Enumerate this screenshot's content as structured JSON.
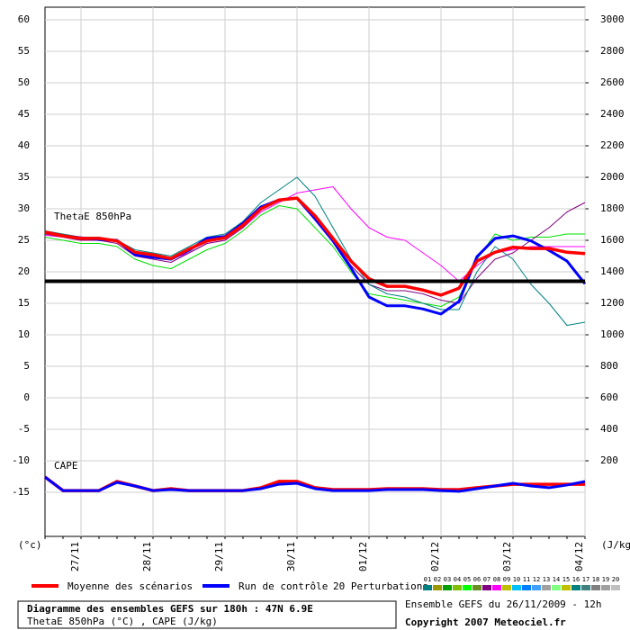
{
  "chart_data": {
    "type": "line",
    "title": "Diagramme des ensembles GEFS sur 180h : 47N 6.9E",
    "subtitle": "ThetaE 850hPa (°C) , CAPE (J/kg)",
    "run_label": "Ensemble GEFS du 26/11/2009 - 12h",
    "copyright": "Copyright 2007 Meteociel.fr",
    "panel_labels": [
      "ThetaE 850hPa",
      "CAPE"
    ],
    "ylabel": "(°c)",
    "y2label": "(J/kg)",
    "categories": [
      null,
      null,
      "27/11",
      null,
      null,
      null,
      "28/11",
      null,
      null,
      null,
      "29/11",
      null,
      null,
      null,
      "30/11",
      null,
      null,
      null,
      "01/12",
      null,
      null,
      null,
      "02/12",
      null,
      null,
      null,
      "03/12",
      null,
      null,
      null,
      "04/12"
    ],
    "ylim": [
      -22,
      62
    ],
    "yticks": [
      60,
      55,
      50,
      45,
      40,
      35,
      30,
      25,
      20,
      15,
      10,
      5,
      0,
      -5,
      -10,
      -15
    ],
    "y2lim": [
      -280,
      3080
    ],
    "y2ticks": [
      3000,
      2800,
      2600,
      2400,
      2200,
      2000,
      1800,
      1600,
      1400,
      1200,
      1000,
      800,
      600,
      400,
      200
    ],
    "grid": true,
    "reference_line": 18.5,
    "series": [
      {
        "name": "Moyenne des scénarios",
        "color": "#ff0000",
        "values": [
          26.3,
          25.7,
          25.3,
          25.3,
          24.9,
          23.1,
          22.7,
          22.1,
          23.6,
          24.9,
          25.4,
          27.4,
          30,
          31.4,
          31.7,
          28.9,
          25.3,
          21.7,
          18.9,
          17.7,
          17.7,
          17.1,
          16.3,
          17.4,
          21.7,
          23.1,
          23.9,
          23.7,
          23.7,
          23.1,
          22.9
        ]
      },
      {
        "name": "Run de contrôle",
        "color": "#0000ff",
        "values": [
          26.3,
          25.7,
          25.4,
          25.1,
          25,
          22.7,
          22.3,
          22,
          23.4,
          25.3,
          25.6,
          27.7,
          30.3,
          31.4,
          31.7,
          28.4,
          24.9,
          20.6,
          16,
          14.6,
          14.6,
          14.1,
          13.3,
          15.3,
          22.4,
          25.3,
          25.7,
          24.9,
          23.4,
          21.7,
          18.1
        ]
      },
      {
        "color": "#ff00ff",
        "values": [
          25.8,
          25.5,
          25,
          25,
          24.8,
          23,
          22.5,
          22,
          23,
          24.5,
          25,
          27,
          29.5,
          31,
          32.5,
          33,
          33.5,
          30,
          27,
          25.5,
          25,
          23,
          21,
          18.5,
          21,
          23,
          23.5,
          24,
          24,
          24,
          24
        ]
      },
      {
        "color": "#00e000",
        "values": [
          25.5,
          25,
          24.5,
          24.5,
          24,
          22,
          21,
          20.5,
          22,
          23.5,
          24.5,
          26.5,
          29,
          30.5,
          30,
          27,
          24,
          20,
          16.5,
          16,
          15.5,
          15,
          14.5,
          16,
          22,
          26,
          25,
          25.5,
          25.5,
          26,
          26
        ]
      },
      {
        "color": "#800080",
        "values": [
          26,
          25.5,
          25,
          25,
          24.5,
          22.5,
          22,
          21.5,
          23,
          24.5,
          25,
          27,
          30,
          31.5,
          31.5,
          29,
          25,
          21,
          18,
          17,
          17,
          16.5,
          15.5,
          15,
          19,
          22,
          23,
          25,
          27,
          29.5,
          31
        ]
      },
      {
        "color": "#008080",
        "values": [
          26.5,
          26,
          25.5,
          25.5,
          25,
          23.5,
          23,
          22.5,
          24,
          25.5,
          26,
          28,
          31,
          33,
          35,
          32,
          27,
          22,
          18,
          16.5,
          16,
          15,
          14,
          14,
          20,
          24,
          22,
          18,
          15,
          11.5,
          12
        ]
      },
      {
        "color": "#ff0000",
        "axis": "y2",
        "values": [
          97,
          11,
          11,
          11,
          69,
          40,
          11,
          23,
          11,
          11,
          11,
          11,
          29,
          69,
          69,
          29,
          17,
          17,
          17,
          23,
          23,
          23,
          17,
          17,
          29,
          40,
          51,
          51,
          51,
          51,
          51
        ]
      },
      {
        "color": "#0000ff",
        "axis": "y2",
        "values": [
          97,
          11,
          11,
          11,
          63,
          40,
          11,
          17,
          11,
          11,
          11,
          11,
          23,
          51,
          57,
          23,
          11,
          11,
          11,
          17,
          17,
          17,
          11,
          6,
          23,
          40,
          57,
          40,
          29,
          46,
          69
        ]
      }
    ],
    "perturbations_legend": {
      "label": "20 Perturbations",
      "members": [
        {
          "label": "01",
          "color": "#008080"
        },
        {
          "label": "02",
          "color": "#9a9a00"
        },
        {
          "label": "03",
          "color": "#00a000"
        },
        {
          "label": "04",
          "color": "#80c000"
        },
        {
          "label": "05",
          "color": "#00ff00"
        },
        {
          "label": "06",
          "color": "#6b8e23"
        },
        {
          "label": "07",
          "color": "#800080"
        },
        {
          "label": "08",
          "color": "#ff00ff"
        },
        {
          "label": "09",
          "color": "#c0c000"
        },
        {
          "label": "10",
          "color": "#00c0ff"
        },
        {
          "label": "11",
          "color": "#0080ff"
        },
        {
          "label": "12",
          "color": "#40a0ff"
        },
        {
          "label": "13",
          "color": "#a0a0a0"
        },
        {
          "label": "14",
          "color": "#80ff80"
        },
        {
          "label": "15",
          "color": "#c0c000"
        },
        {
          "label": "16",
          "color": "#008080"
        },
        {
          "label": "17",
          "color": "#408080"
        },
        {
          "label": "18",
          "color": "#808080"
        },
        {
          "label": "19",
          "color": "#a0a0a0"
        },
        {
          "label": "20",
          "color": "#c0c0c0"
        }
      ]
    }
  }
}
